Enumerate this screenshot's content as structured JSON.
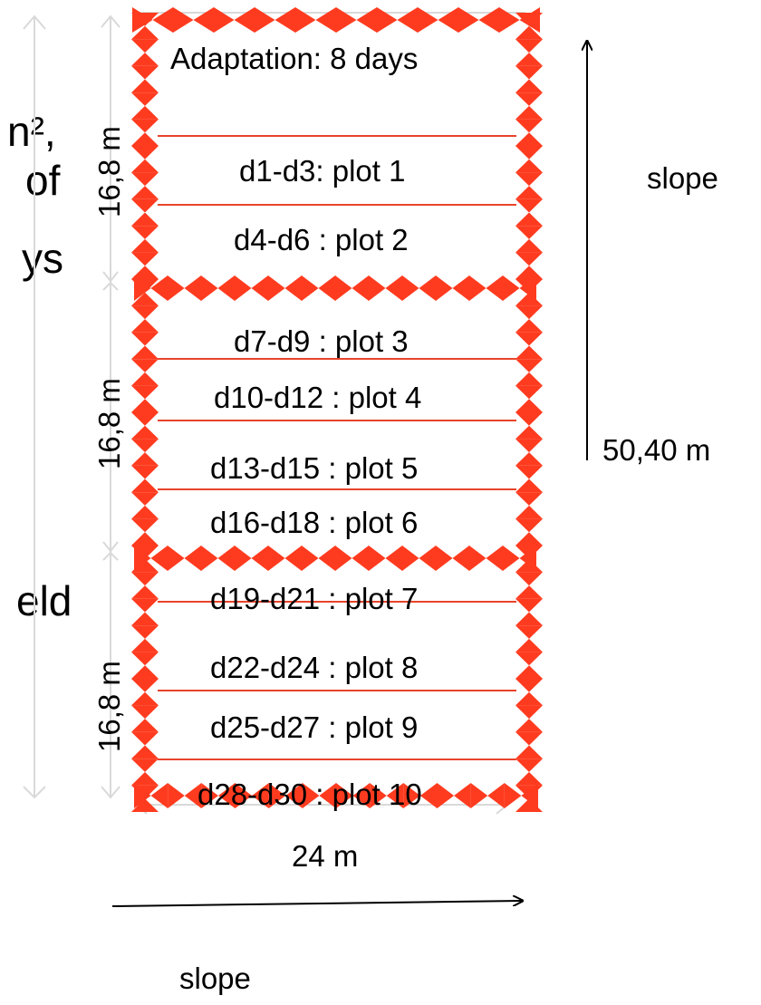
{
  "cropped_left_text": [
    {
      "id": "m2",
      "text": "n²,"
    },
    {
      "id": "of",
      "text": "of"
    },
    {
      "id": "ys",
      "text": "ys"
    },
    {
      "id": "eld",
      "text": "eld"
    }
  ],
  "header_label": "Adaptation: 8 days",
  "plots": [
    {
      "label": "d1-d3: plot 1"
    },
    {
      "label": "d4-d6 : plot 2"
    },
    {
      "label": "d7-d9 : plot 3"
    },
    {
      "label": "d10-d12 : plot 4"
    },
    {
      "label": "d13-d15 : plot 5"
    },
    {
      "label": "d16-d18 : plot 6"
    },
    {
      "label": "d19-d21 : plot 7"
    },
    {
      "label": "d22-d24 : plot 8"
    },
    {
      "label": "d25-d27 : plot 9"
    },
    {
      "label": "d28-d30 : plot 10"
    }
  ],
  "section_height_label": "16,8 m",
  "width_label": "24 m",
  "total_length_label": "50,40 m",
  "slope_label_right": "slope",
  "slope_label_bottom": "slope",
  "colors": {
    "fence": "#ff3b1f",
    "divider": "#e8442a",
    "dimension_line": "#d9d9d9",
    "arrow": "#000000"
  }
}
